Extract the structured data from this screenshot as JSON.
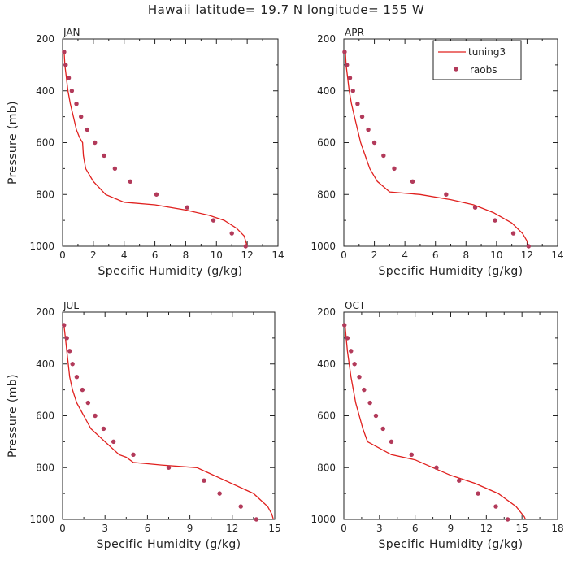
{
  "figure_title": "Hawaii  latitude= 19.7 N longitude= 155 W",
  "colors": {
    "model": "#e0201e",
    "obs": "#b23a5a",
    "axis": "#222222"
  },
  "legend": {
    "placement": "top-right of APR panel",
    "model_label": "tuning3",
    "obs_label": "raobs"
  },
  "chart_data": [
    {
      "type": "line",
      "title": "JAN",
      "xlabel": "Specific Humidity (g/kg)",
      "ylabel": "Pressure (mb)",
      "xlim": [
        0,
        14
      ],
      "ylim": [
        1000,
        200
      ],
      "xticks": [
        "0",
        "2",
        "4",
        "6",
        "8",
        "10",
        "12",
        "14"
      ],
      "yticks": [
        "200",
        "400",
        "600",
        "800",
        "1000"
      ],
      "legend": false,
      "series": [
        {
          "name": "tuning3",
          "style": "line",
          "x": [
            0.1,
            0.15,
            0.25,
            0.35,
            0.5,
            0.7,
            0.9,
            1.1,
            1.2,
            1.3,
            1.35,
            1.5,
            2,
            2.8,
            4,
            6,
            8,
            9.5,
            10.5,
            11.3,
            11.8,
            12
          ],
          "y": [
            250,
            300,
            350,
            400,
            450,
            500,
            550,
            580,
            590,
            600,
            650,
            700,
            750,
            800,
            830,
            840,
            860,
            880,
            900,
            930,
            960,
            1000
          ]
        },
        {
          "name": "raobs",
          "style": "points",
          "x": [
            0.1,
            0.2,
            0.4,
            0.6,
            0.9,
            1.2,
            1.6,
            2.1,
            2.7,
            3.4,
            4.4,
            6.1,
            8.1,
            9.8,
            11,
            11.9
          ],
          "y": [
            250,
            300,
            350,
            400,
            450,
            500,
            550,
            600,
            650,
            700,
            750,
            800,
            850,
            900,
            950,
            1000
          ]
        }
      ]
    },
    {
      "type": "line",
      "title": "APR",
      "xlabel": "Specific Humidity (g/kg)",
      "ylabel": "",
      "xlim": [
        0,
        14
      ],
      "ylim": [
        1000,
        200
      ],
      "xticks": [
        "0",
        "2",
        "4",
        "6",
        "8",
        "10",
        "12",
        "14"
      ],
      "yticks": [
        "200",
        "400",
        "600",
        "800",
        "1000"
      ],
      "legend": true,
      "series": [
        {
          "name": "tuning3",
          "style": "line",
          "x": [
            0.1,
            0.15,
            0.25,
            0.35,
            0.5,
            0.7,
            0.9,
            1.1,
            1.4,
            1.7,
            2.2,
            2.8,
            3,
            5,
            7,
            8.5,
            9.8,
            11,
            11.7,
            12,
            12.1
          ],
          "y": [
            250,
            300,
            350,
            400,
            450,
            500,
            550,
            600,
            650,
            700,
            750,
            780,
            790,
            800,
            820,
            840,
            870,
            910,
            950,
            980,
            1000
          ]
        },
        {
          "name": "raobs",
          "style": "points",
          "x": [
            0.05,
            0.2,
            0.4,
            0.6,
            0.9,
            1.2,
            1.6,
            2,
            2.6,
            3.3,
            4.5,
            6.7,
            8.6,
            9.9,
            11.1,
            12.1
          ],
          "y": [
            250,
            300,
            350,
            400,
            450,
            500,
            550,
            600,
            650,
            700,
            750,
            800,
            850,
            900,
            950,
            1000
          ]
        }
      ]
    },
    {
      "type": "line",
      "title": "JUL",
      "xlabel": "Specific Humidity (g/kg)",
      "ylabel": "Pressure (mb)",
      "xlim": [
        0,
        15
      ],
      "ylim": [
        1000,
        200
      ],
      "xticks": [
        "0",
        "3",
        "6",
        "9",
        "12",
        "15"
      ],
      "yticks": [
        "200",
        "400",
        "600",
        "800",
        "1000"
      ],
      "legend": false,
      "series": [
        {
          "name": "tuning3",
          "style": "line",
          "x": [
            0.1,
            0.2,
            0.3,
            0.4,
            0.5,
            0.7,
            1,
            1.5,
            2,
            3,
            4,
            4.5,
            5,
            7,
            9.5,
            11.5,
            13.5,
            14.5,
            14.8,
            14.9
          ],
          "y": [
            250,
            300,
            350,
            400,
            450,
            500,
            550,
            600,
            650,
            700,
            750,
            760,
            780,
            790,
            800,
            850,
            900,
            950,
            980,
            1000
          ]
        },
        {
          "name": "raobs",
          "style": "points",
          "x": [
            0.1,
            0.3,
            0.5,
            0.7,
            1,
            1.4,
            1.8,
            2.3,
            2.9,
            3.6,
            5,
            7.5,
            10,
            11.1,
            12.6,
            13.7
          ],
          "y": [
            250,
            300,
            350,
            400,
            450,
            500,
            550,
            600,
            650,
            700,
            750,
            800,
            850,
            900,
            950,
            1000
          ]
        }
      ]
    },
    {
      "type": "line",
      "title": "OCT",
      "xlabel": "Specific Humidity (g/kg)",
      "ylabel": "",
      "xlim": [
        0,
        18
      ],
      "ylim": [
        1000,
        200
      ],
      "xticks": [
        "0",
        "3",
        "6",
        "9",
        "12",
        "15",
        "18"
      ],
      "yticks": [
        "200",
        "400",
        "600",
        "800",
        "1000"
      ],
      "legend": false,
      "series": [
        {
          "name": "tuning3",
          "style": "line",
          "x": [
            0.1,
            0.2,
            0.3,
            0.45,
            0.6,
            0.8,
            1,
            1.3,
            1.6,
            2,
            4,
            6,
            7.5,
            9,
            11,
            13,
            14.5,
            15.2,
            15.3
          ],
          "y": [
            250,
            300,
            350,
            400,
            450,
            500,
            550,
            600,
            650,
            700,
            750,
            770,
            800,
            830,
            860,
            900,
            950,
            990,
            1000
          ]
        },
        {
          "name": "raobs",
          "style": "points",
          "x": [
            0.05,
            0.3,
            0.6,
            0.9,
            1.3,
            1.7,
            2.2,
            2.7,
            3.3,
            4,
            5.7,
            7.8,
            9.7,
            11.3,
            12.8,
            13.8
          ],
          "y": [
            250,
            300,
            350,
            400,
            450,
            500,
            550,
            600,
            650,
            700,
            750,
            800,
            850,
            900,
            950,
            1000
          ]
        }
      ]
    }
  ]
}
